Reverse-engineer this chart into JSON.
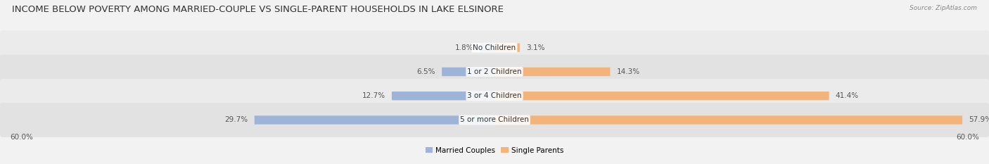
{
  "title": "INCOME BELOW POVERTY AMONG MARRIED-COUPLE VS SINGLE-PARENT HOUSEHOLDS IN LAKE ELSINORE",
  "source": "Source: ZipAtlas.com",
  "categories": [
    "No Children",
    "1 or 2 Children",
    "3 or 4 Children",
    "5 or more Children"
  ],
  "married_values": [
    1.8,
    6.5,
    12.7,
    29.7
  ],
  "single_values": [
    3.1,
    14.3,
    41.4,
    57.9
  ],
  "married_color": "#9db3d8",
  "single_color": "#f2b47a",
  "axis_max": 60.0,
  "axis_label_left": "60.0%",
  "axis_label_right": "60.0%",
  "legend_married": "Married Couples",
  "legend_single": "Single Parents",
  "title_fontsize": 9.5,
  "label_fontsize": 7.5,
  "category_fontsize": 7.5,
  "bg_color": "#f2f2f2",
  "row_bg_even": "#ebebeb",
  "row_bg_odd": "#e2e2e2"
}
